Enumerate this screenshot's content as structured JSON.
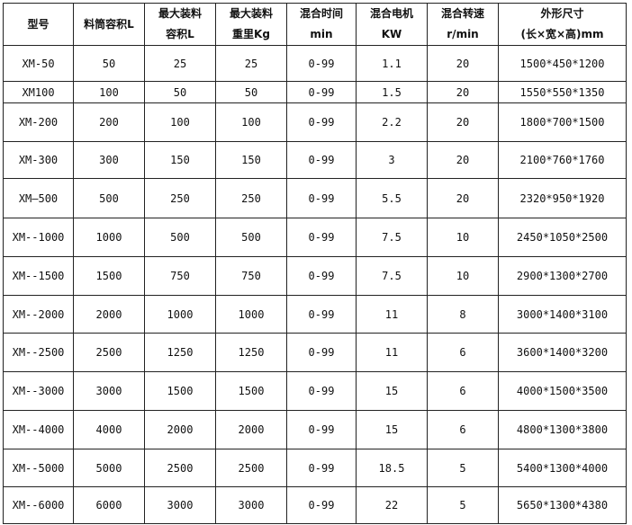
{
  "headers": [
    [
      "型号"
    ],
    [
      "料筒容积L"
    ],
    [
      "最大装料",
      "容积L"
    ],
    [
      "最大装料",
      "重里Kg"
    ],
    [
      "混合时间",
      "min"
    ],
    [
      "混合电机",
      "KW"
    ],
    [
      "混合转速",
      "r/min"
    ],
    [
      "外形尺寸",
      "(长×宽×高)mm"
    ]
  ],
  "rows": [
    [
      "XM-50",
      "50",
      "25",
      "25",
      "0-99",
      "1.1",
      "20",
      "1500*450*1200"
    ],
    [
      "XM100",
      "100",
      "50",
      "50",
      "0-99",
      "1.5",
      "20",
      "1550*550*1350"
    ],
    [
      "XM-200",
      "200",
      "100",
      "100",
      "0-99",
      "2.2",
      "20",
      "1800*700*1500"
    ],
    [
      "XM-300",
      "300",
      "150",
      "150",
      "0-99",
      "3",
      "20",
      "2100*760*1760"
    ],
    [
      "XM—500",
      "500",
      "250",
      "250",
      "0-99",
      "5.5",
      "20",
      "2320*950*1920"
    ],
    [
      "XM--1000",
      "1000",
      "500",
      "500",
      "0-99",
      "7.5",
      "10",
      "2450*1050*2500"
    ],
    [
      "XM--1500",
      "1500",
      "750",
      "750",
      "0-99",
      "7.5",
      "10",
      "2900*1300*2700"
    ],
    [
      "XM--2000",
      "2000",
      "1000",
      "1000",
      "0-99",
      "11",
      "8",
      "3000*1400*3100"
    ],
    [
      "XM--2500",
      "2500",
      "1250",
      "1250",
      "0-99",
      "11",
      "6",
      "3600*1400*3200"
    ],
    [
      "XM--3000",
      "3000",
      "1500",
      "1500",
      "0-99",
      "15",
      "6",
      "4000*1500*3500"
    ],
    [
      "XM--4000",
      "4000",
      "2000",
      "2000",
      "0-99",
      "15",
      "6",
      "4800*1300*3800"
    ],
    [
      "XM--5000",
      "5000",
      "2500",
      "2500",
      "0-99",
      "18.5",
      "5",
      "5400*1300*4000"
    ],
    [
      "XM--6000",
      "6000",
      "3000",
      "3000",
      "0-99",
      "22",
      "5",
      "5650*1300*4380"
    ]
  ]
}
